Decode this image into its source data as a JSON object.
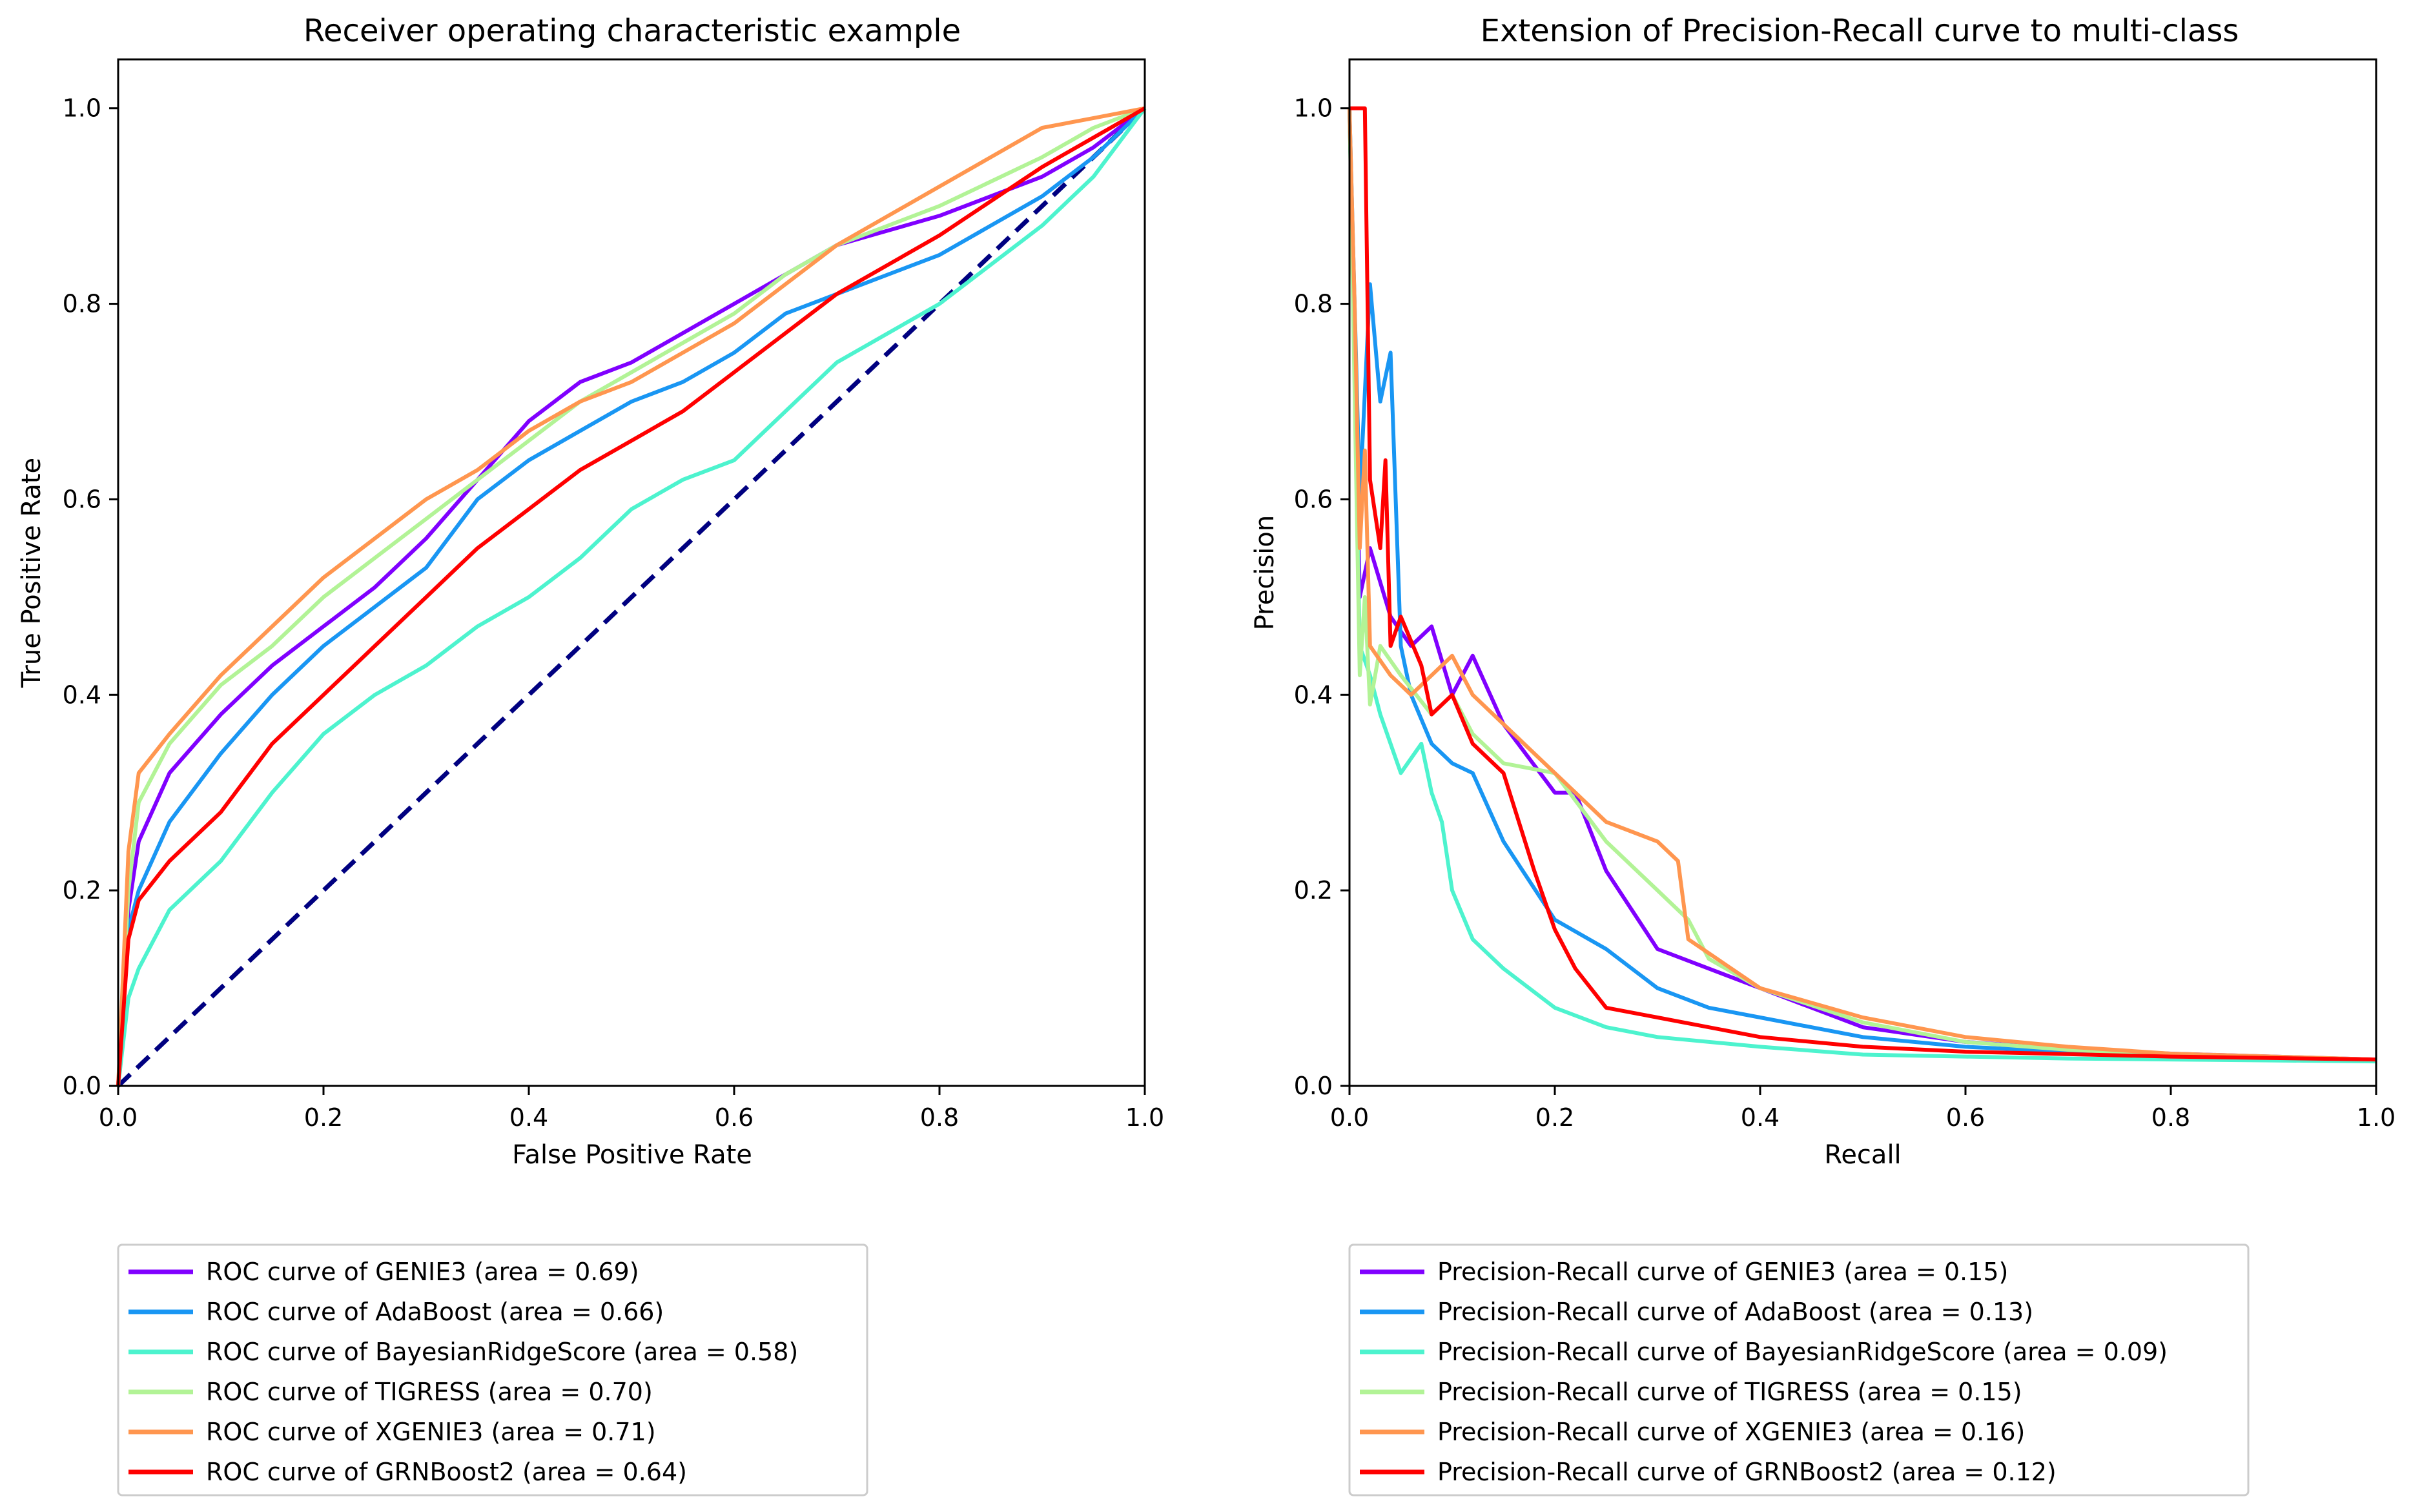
{
  "chart_data": [
    {
      "type": "line",
      "title": "Receiver operating characteristic example",
      "xlabel": "False Positive Rate",
      "ylabel": "True Positive Rate",
      "xlim": [
        0.0,
        1.0
      ],
      "ylim": [
        0.0,
        1.05
      ],
      "xticks": [
        "0.0",
        "0.2",
        "0.4",
        "0.6",
        "0.8",
        "1.0"
      ],
      "yticks": [
        "0.0",
        "0.2",
        "0.4",
        "0.6",
        "0.8",
        "1.0"
      ],
      "legend_position": "below",
      "grid": false,
      "diagonal": {
        "x": [
          0,
          1
        ],
        "y": [
          0,
          1
        ],
        "color": "#000080",
        "style": "dashed"
      },
      "series": [
        {
          "name": "ROC curve of GENIE3 (area = 0.69)",
          "color": "#8000ff",
          "x": [
            0,
            0.01,
            0.02,
            0.05,
            0.1,
            0.15,
            0.2,
            0.25,
            0.3,
            0.35,
            0.4,
            0.45,
            0.5,
            0.55,
            0.6,
            0.65,
            0.7,
            0.8,
            0.9,
            0.95,
            1.0
          ],
          "y": [
            0,
            0.18,
            0.25,
            0.32,
            0.38,
            0.43,
            0.47,
            0.51,
            0.56,
            0.62,
            0.68,
            0.72,
            0.74,
            0.77,
            0.8,
            0.83,
            0.86,
            0.89,
            0.93,
            0.96,
            1.0
          ]
        },
        {
          "name": "ROC curve of AdaBoost (area = 0.66)",
          "color": "#1996f3",
          "x": [
            0,
            0.01,
            0.02,
            0.05,
            0.1,
            0.15,
            0.2,
            0.25,
            0.3,
            0.35,
            0.4,
            0.45,
            0.5,
            0.55,
            0.6,
            0.65,
            0.7,
            0.8,
            0.9,
            0.95,
            1.0
          ],
          "y": [
            0,
            0.16,
            0.2,
            0.27,
            0.34,
            0.4,
            0.45,
            0.49,
            0.53,
            0.6,
            0.64,
            0.67,
            0.7,
            0.72,
            0.75,
            0.79,
            0.81,
            0.85,
            0.91,
            0.95,
            1.0
          ]
        },
        {
          "name": "ROC curve of BayesianRidgeScore (area = 0.58)",
          "color": "#4df3ce",
          "x": [
            0,
            0.01,
            0.02,
            0.05,
            0.1,
            0.15,
            0.2,
            0.25,
            0.3,
            0.35,
            0.4,
            0.45,
            0.5,
            0.55,
            0.6,
            0.65,
            0.7,
            0.8,
            0.9,
            0.95,
            1.0
          ],
          "y": [
            0,
            0.09,
            0.12,
            0.18,
            0.23,
            0.3,
            0.36,
            0.4,
            0.43,
            0.47,
            0.5,
            0.54,
            0.59,
            0.62,
            0.64,
            0.69,
            0.74,
            0.8,
            0.88,
            0.93,
            1.0
          ]
        },
        {
          "name": "ROC curve of TIGRESS (area = 0.70)",
          "color": "#b2f396",
          "x": [
            0,
            0.01,
            0.02,
            0.05,
            0.1,
            0.15,
            0.2,
            0.25,
            0.3,
            0.35,
            0.4,
            0.45,
            0.5,
            0.55,
            0.6,
            0.65,
            0.7,
            0.8,
            0.9,
            0.95,
            1.0
          ],
          "y": [
            0,
            0.2,
            0.29,
            0.35,
            0.41,
            0.45,
            0.5,
            0.54,
            0.58,
            0.62,
            0.66,
            0.7,
            0.73,
            0.76,
            0.79,
            0.83,
            0.86,
            0.9,
            0.95,
            0.98,
            1.0
          ]
        },
        {
          "name": "ROC curve of XGENIE3 (area = 0.71)",
          "color": "#ff964f",
          "x": [
            0,
            0.01,
            0.02,
            0.05,
            0.1,
            0.15,
            0.2,
            0.25,
            0.3,
            0.35,
            0.4,
            0.45,
            0.5,
            0.55,
            0.6,
            0.65,
            0.7,
            0.8,
            0.9,
            0.95,
            1.0
          ],
          "y": [
            0,
            0.24,
            0.32,
            0.36,
            0.42,
            0.47,
            0.52,
            0.56,
            0.6,
            0.63,
            0.67,
            0.7,
            0.72,
            0.75,
            0.78,
            0.82,
            0.86,
            0.92,
            0.98,
            0.99,
            1.0
          ]
        },
        {
          "name": "ROC curve of GRNBoost2 (area = 0.64)",
          "color": "#ff0000",
          "x": [
            0,
            0.01,
            0.02,
            0.05,
            0.1,
            0.15,
            0.2,
            0.25,
            0.3,
            0.35,
            0.4,
            0.45,
            0.5,
            0.55,
            0.6,
            0.65,
            0.7,
            0.8,
            0.9,
            0.95,
            1.0
          ],
          "y": [
            0,
            0.15,
            0.19,
            0.23,
            0.28,
            0.35,
            0.4,
            0.45,
            0.5,
            0.55,
            0.59,
            0.63,
            0.66,
            0.69,
            0.73,
            0.77,
            0.81,
            0.87,
            0.94,
            0.97,
            1.0
          ]
        }
      ]
    },
    {
      "type": "line",
      "title": "Extension of Precision-Recall curve to multi-class",
      "xlabel": "Recall",
      "ylabel": "Precision",
      "xlim": [
        0.0,
        1.0
      ],
      "ylim": [
        0.0,
        1.05
      ],
      "xticks": [
        "0.0",
        "0.2",
        "0.4",
        "0.6",
        "0.8",
        "1.0"
      ],
      "yticks": [
        "0.0",
        "0.2",
        "0.4",
        "0.6",
        "0.8",
        "1.0"
      ],
      "legend_position": "below",
      "grid": false,
      "series": [
        {
          "name": "Precision-Recall curve of GENIE3 (area = 0.15)",
          "color": "#8000ff",
          "x": [
            0,
            0.01,
            0.02,
            0.04,
            0.06,
            0.08,
            0.1,
            0.12,
            0.15,
            0.2,
            0.22,
            0.25,
            0.3,
            0.35,
            0.4,
            0.5,
            0.6,
            0.7,
            0.8,
            0.9,
            1.0
          ],
          "y": [
            1.0,
            0.5,
            0.55,
            0.48,
            0.45,
            0.47,
            0.4,
            0.44,
            0.37,
            0.3,
            0.3,
            0.22,
            0.14,
            0.12,
            0.1,
            0.06,
            0.045,
            0.038,
            0.033,
            0.03,
            0.027
          ]
        },
        {
          "name": "Precision-Recall curve of AdaBoost (area = 0.13)",
          "color": "#1996f3",
          "x": [
            0,
            0.01,
            0.02,
            0.03,
            0.04,
            0.05,
            0.06,
            0.08,
            0.1,
            0.12,
            0.15,
            0.2,
            0.25,
            0.3,
            0.35,
            0.4,
            0.5,
            0.6,
            0.7,
            0.8,
            0.9,
            1.0
          ],
          "y": [
            1.0,
            0.6,
            0.82,
            0.7,
            0.75,
            0.45,
            0.4,
            0.35,
            0.33,
            0.32,
            0.25,
            0.17,
            0.14,
            0.1,
            0.08,
            0.07,
            0.05,
            0.04,
            0.035,
            0.03,
            0.028,
            0.026
          ]
        },
        {
          "name": "Precision-Recall curve of BayesianRidgeScore (area = 0.09)",
          "color": "#4df3ce",
          "x": [
            0,
            0.01,
            0.02,
            0.03,
            0.04,
            0.05,
            0.07,
            0.08,
            0.09,
            0.1,
            0.12,
            0.15,
            0.2,
            0.25,
            0.3,
            0.4,
            0.5,
            0.6,
            0.7,
            0.8,
            0.9,
            1.0
          ],
          "y": [
            1.0,
            0.45,
            0.42,
            0.38,
            0.35,
            0.32,
            0.35,
            0.3,
            0.27,
            0.2,
            0.15,
            0.12,
            0.08,
            0.06,
            0.05,
            0.04,
            0.032,
            0.03,
            0.028,
            0.027,
            0.026,
            0.025
          ]
        },
        {
          "name": "Precision-Recall curve of TIGRESS (area = 0.15)",
          "color": "#b2f396",
          "x": [
            0,
            0.01,
            0.015,
            0.02,
            0.03,
            0.05,
            0.08,
            0.1,
            0.12,
            0.15,
            0.2,
            0.25,
            0.3,
            0.33,
            0.35,
            0.4,
            0.5,
            0.6,
            0.7,
            0.8,
            0.9,
            1.0
          ],
          "y": [
            1.0,
            0.42,
            0.5,
            0.39,
            0.45,
            0.42,
            0.38,
            0.4,
            0.36,
            0.33,
            0.32,
            0.25,
            0.2,
            0.17,
            0.13,
            0.1,
            0.065,
            0.045,
            0.037,
            0.032,
            0.029,
            0.027
          ]
        },
        {
          "name": "Precision-Recall curve of XGENIE3 (area = 0.16)",
          "color": "#ff964f",
          "x": [
            0,
            0.005,
            0.01,
            0.015,
            0.02,
            0.04,
            0.06,
            0.08,
            0.1,
            0.12,
            0.15,
            0.2,
            0.25,
            0.3,
            0.32,
            0.33,
            0.4,
            0.5,
            0.6,
            0.7,
            0.8,
            1.0
          ],
          "y": [
            1.0,
            0.8,
            0.55,
            0.65,
            0.45,
            0.42,
            0.4,
            0.42,
            0.44,
            0.4,
            0.37,
            0.32,
            0.27,
            0.25,
            0.23,
            0.15,
            0.1,
            0.07,
            0.05,
            0.04,
            0.033,
            0.027
          ]
        },
        {
          "name": "Precision-Recall curve of GRNBoost2 (area = 0.12)",
          "color": "#ff0000",
          "x": [
            0,
            0.005,
            0.015,
            0.02,
            0.03,
            0.035,
            0.04,
            0.05,
            0.07,
            0.08,
            0.1,
            0.12,
            0.15,
            0.18,
            0.2,
            0.22,
            0.25,
            0.3,
            0.4,
            0.5,
            0.6,
            0.8,
            1.0
          ],
          "y": [
            1.0,
            1.0,
            1.0,
            0.62,
            0.55,
            0.64,
            0.45,
            0.48,
            0.43,
            0.38,
            0.4,
            0.35,
            0.32,
            0.22,
            0.16,
            0.12,
            0.08,
            0.07,
            0.05,
            0.04,
            0.035,
            0.03,
            0.027
          ]
        }
      ]
    }
  ]
}
